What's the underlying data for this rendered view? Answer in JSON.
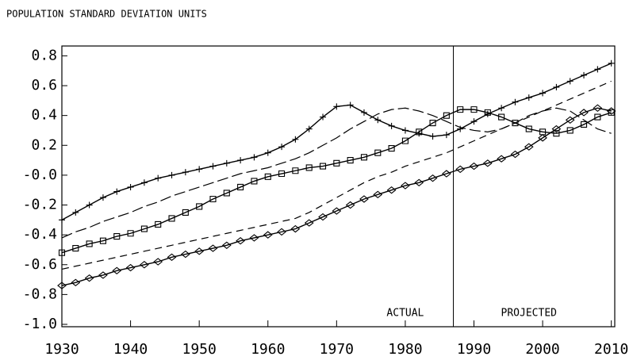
{
  "chart_data": {
    "type": "line",
    "title": "POPULATION STANDARD DEVIATION UNITS",
    "x": [
      1930,
      1932,
      1934,
      1936,
      1938,
      1940,
      1942,
      1944,
      1946,
      1948,
      1950,
      1952,
      1954,
      1956,
      1958,
      1960,
      1962,
      1964,
      1966,
      1968,
      1970,
      1972,
      1974,
      1976,
      1978,
      1980,
      1982,
      1984,
      1986,
      1988,
      1990,
      1992,
      1994,
      1996,
      1998,
      2000,
      2002,
      2004,
      2006,
      2008,
      2010
    ],
    "series": [
      {
        "color": "#000000",
        "marker": "plus",
        "line_style": "solid",
        "values": [
          -0.3,
          -0.25,
          -0.2,
          -0.15,
          -0.11,
          -0.08,
          -0.05,
          -0.02,
          0.0,
          0.02,
          0.04,
          0.06,
          0.08,
          0.1,
          0.12,
          0.15,
          0.19,
          0.24,
          0.31,
          0.39,
          0.46,
          0.47,
          0.42,
          0.37,
          0.33,
          0.3,
          0.28,
          0.26,
          0.27,
          0.31,
          0.36,
          0.41,
          0.45,
          0.49,
          0.52,
          0.55,
          0.59,
          0.63,
          0.67,
          0.71,
          0.75
        ]
      },
      {
        "color": "#000000",
        "marker": null,
        "line_style": "long-dash",
        "values": [
          -0.42,
          -0.38,
          -0.35,
          -0.31,
          -0.28,
          -0.25,
          -0.21,
          -0.18,
          -0.14,
          -0.11,
          -0.08,
          -0.05,
          -0.02,
          0.01,
          0.03,
          0.05,
          0.08,
          0.11,
          0.15,
          0.2,
          0.25,
          0.31,
          0.36,
          0.41,
          0.44,
          0.45,
          0.43,
          0.4,
          0.36,
          0.32,
          0.3,
          0.29,
          0.31,
          0.35,
          0.4,
          0.43,
          0.45,
          0.43,
          0.37,
          0.31,
          0.28
        ]
      },
      {
        "color": "#000000",
        "marker": "square",
        "line_style": "solid",
        "values": [
          -0.52,
          -0.49,
          -0.46,
          -0.44,
          -0.41,
          -0.39,
          -0.36,
          -0.33,
          -0.29,
          -0.25,
          -0.21,
          -0.16,
          -0.12,
          -0.08,
          -0.04,
          -0.01,
          0.01,
          0.03,
          0.05,
          0.06,
          0.08,
          0.1,
          0.12,
          0.15,
          0.18,
          0.23,
          0.29,
          0.35,
          0.4,
          0.44,
          0.44,
          0.42,
          0.39,
          0.35,
          0.31,
          0.29,
          0.28,
          0.3,
          0.34,
          0.39,
          0.42
        ]
      },
      {
        "color": "#000000",
        "marker": null,
        "line_style": "dash",
        "values": [
          -0.63,
          -0.61,
          -0.59,
          -0.57,
          -0.55,
          -0.53,
          -0.51,
          -0.49,
          -0.47,
          -0.45,
          -0.43,
          -0.41,
          -0.39,
          -0.37,
          -0.35,
          -0.33,
          -0.31,
          -0.29,
          -0.25,
          -0.2,
          -0.15,
          -0.1,
          -0.05,
          -0.01,
          0.02,
          0.06,
          0.09,
          0.12,
          0.15,
          0.19,
          0.23,
          0.27,
          0.31,
          0.35,
          0.39,
          0.43,
          0.47,
          0.51,
          0.55,
          0.59,
          0.63
        ]
      },
      {
        "color": "#000000",
        "marker": "diamond",
        "line_style": "solid",
        "values": [
          -0.74,
          -0.72,
          -0.69,
          -0.67,
          -0.64,
          -0.62,
          -0.6,
          -0.58,
          -0.55,
          -0.53,
          -0.51,
          -0.49,
          -0.47,
          -0.44,
          -0.42,
          -0.4,
          -0.38,
          -0.36,
          -0.32,
          -0.28,
          -0.24,
          -0.2,
          -0.16,
          -0.13,
          -0.1,
          -0.07,
          -0.05,
          -0.02,
          0.01,
          0.04,
          0.06,
          0.08,
          0.11,
          0.14,
          0.19,
          0.25,
          0.31,
          0.37,
          0.42,
          0.45,
          0.43
        ]
      }
    ],
    "xlim": [
      1930,
      2010.5
    ],
    "xticks": [
      1930,
      1940,
      1950,
      1960,
      1970,
      1980,
      1990,
      2000,
      2010
    ],
    "ylim": [
      -1.0,
      0.85
    ],
    "yticks": [
      0.8,
      0.6,
      0.4,
      0.2,
      {
        "value": 0,
        "label": "-0.0"
      },
      -0.2,
      -0.4,
      -0.6,
      -0.8,
      {
        "value": -1,
        "label": "-1.0"
      }
    ],
    "divider_x": 1987,
    "annotations": [
      {
        "text": "ACTUAL",
        "x": 1980
      },
      {
        "text": "PROJECTED",
        "x": 1998
      }
    ],
    "grid": false
  }
}
